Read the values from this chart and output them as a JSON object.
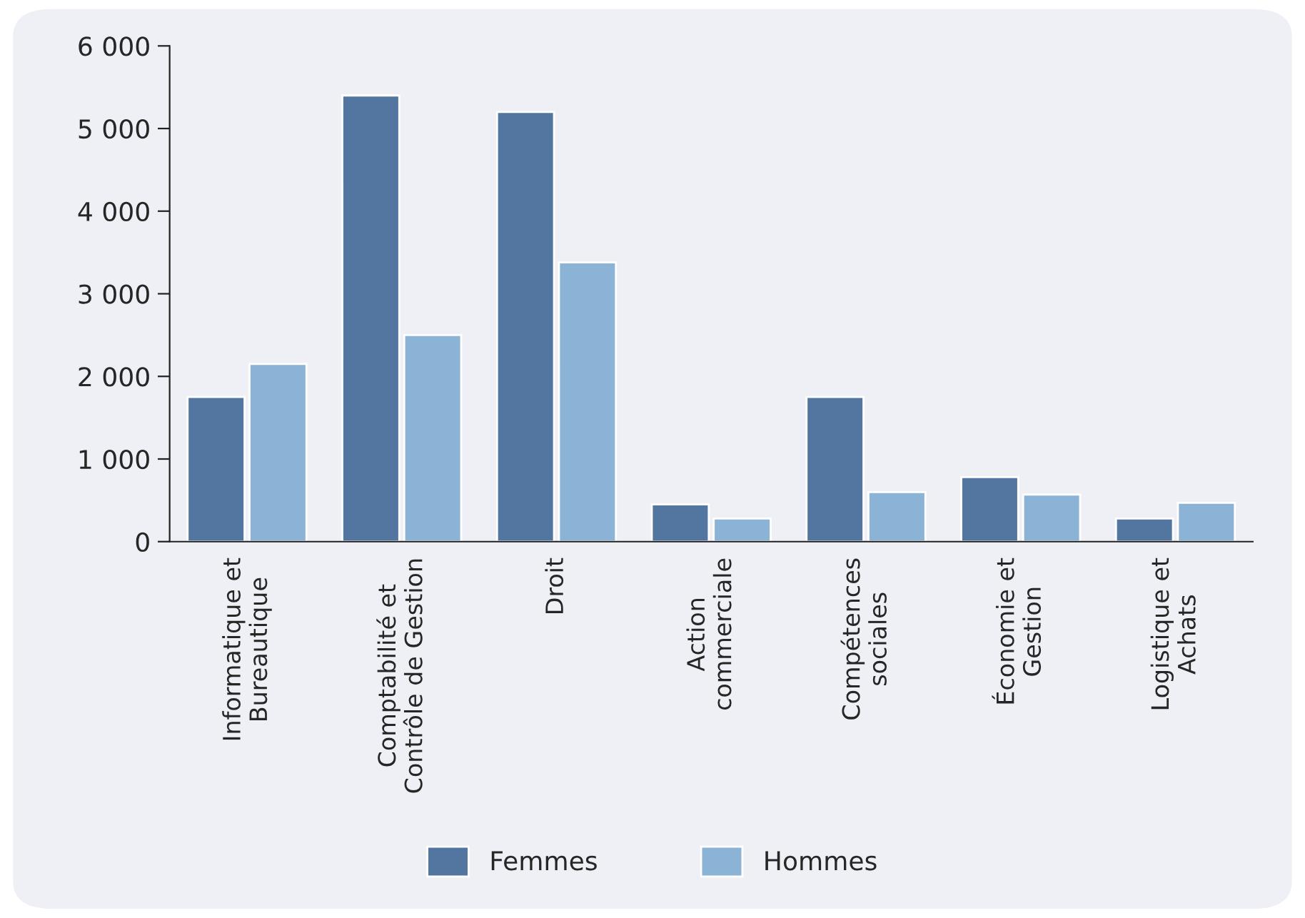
{
  "chart_data": {
    "type": "bar",
    "categories": [
      "Informatique et\nBureautique",
      "Comptabilité et\nContrôle de Gestion",
      "Droit",
      "Action\ncommerciale",
      "Compétences\nsociales",
      "Économie et\nGestion",
      "Logistique et\nAchats"
    ],
    "series": [
      {
        "name": "Femmes",
        "color": "#52769f",
        "values": [
          1750,
          5400,
          5200,
          450,
          1750,
          780,
          280
        ]
      },
      {
        "name": "Hommes",
        "color": "#8ab3d6",
        "values": [
          2150,
          2500,
          3380,
          280,
          600,
          570,
          470
        ]
      }
    ],
    "ylim": [
      0,
      6000
    ],
    "yticks": [
      {
        "value": 0,
        "label": "0"
      },
      {
        "value": 1000,
        "label": "1 000"
      },
      {
        "value": 2000,
        "label": "2 000"
      },
      {
        "value": 3000,
        "label": "3 000"
      },
      {
        "value": 4000,
        "label": "4 000"
      },
      {
        "value": 5000,
        "label": "5 000"
      },
      {
        "value": 6000,
        "label": "6 000"
      }
    ],
    "grid": false,
    "legend": "bottom"
  }
}
